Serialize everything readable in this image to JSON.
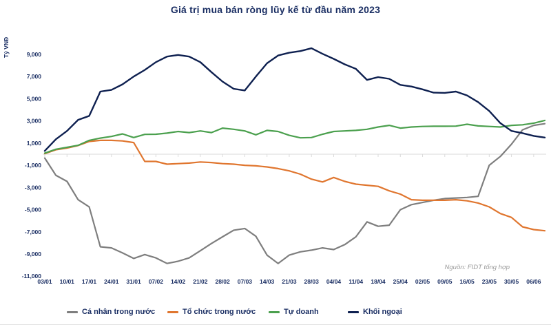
{
  "title": "Giá trị mua bán ròng lũy kế từ đầu năm 2023",
  "source": "Nguồn: FIDT tổng hợp",
  "colors": {
    "text_navy": "#1a2e63",
    "axis_line": "#dadada",
    "source_gray": "#9a9a9a",
    "background": "#ffffff"
  },
  "chart_data": {
    "type": "line",
    "title": "Giá trị mua bán ròng lũy kế từ đầu năm 2023",
    "xlabel": "",
    "ylabel": "Tỷ VNĐ",
    "ylim": [
      -11000,
      9000
    ],
    "y_ticks": [
      9000,
      7000,
      5000,
      3000,
      1000,
      -1000,
      -3000,
      -5000,
      -7000,
      -9000,
      -11000
    ],
    "x_tick_labels": [
      "03/01",
      "10/01",
      "17/01",
      "24/01",
      "31/01",
      "07/02",
      "14/02",
      "21/02",
      "28/02",
      "07/03",
      "14/03",
      "21/03",
      "28/03",
      "04/04",
      "11/04",
      "18/04",
      "25/04",
      "02/05",
      "09/05",
      "16/05",
      "23/05",
      "30/05",
      "06/06"
    ],
    "points_per_week": 2,
    "grid": "zero-axis-only",
    "legend_position": "bottom",
    "series": [
      {
        "key": "ca-nhan-trong-nuoc",
        "name": "Cá nhân trong nước",
        "color": "#7e7e7e",
        "values": [
          -350,
          -1900,
          -2450,
          -4100,
          -4750,
          -8350,
          -8450,
          -8900,
          -9400,
          -9050,
          -9350,
          -9850,
          -9650,
          -9350,
          -8700,
          -8050,
          -7450,
          -6850,
          -6700,
          -7400,
          -9100,
          -9850,
          -9100,
          -8800,
          -8650,
          -8450,
          -8600,
          -8150,
          -7450,
          -6100,
          -6500,
          -6400,
          -5000,
          -4550,
          -4350,
          -4150,
          -4000,
          -3950,
          -3900,
          -3800,
          -1000,
          -200,
          900,
          2200,
          2600,
          2750
        ]
      },
      {
        "key": "to-chuc-trong-nuoc",
        "name": "Tổ chức trong nước",
        "color": "#e0762f",
        "values": [
          50,
          400,
          550,
          780,
          1150,
          1250,
          1250,
          1200,
          1050,
          -650,
          -650,
          -900,
          -850,
          -800,
          -700,
          -750,
          -850,
          -900,
          -1000,
          -1050,
          -1150,
          -1300,
          -1500,
          -1800,
          -2250,
          -2500,
          -2100,
          -2450,
          -2700,
          -2800,
          -2900,
          -3300,
          -3600,
          -4100,
          -4150,
          -4150,
          -4150,
          -4100,
          -4200,
          -4400,
          -4750,
          -5350,
          -5700,
          -6550,
          -6800,
          -6900
        ]
      },
      {
        "key": "tu-doanh",
        "name": "Tự doanh",
        "color": "#4ba04e",
        "values": [
          100,
          450,
          620,
          800,
          1250,
          1450,
          1600,
          1830,
          1500,
          1790,
          1800,
          1900,
          2050,
          1950,
          2100,
          1950,
          2350,
          2250,
          2100,
          1750,
          2150,
          2050,
          1700,
          1480,
          1500,
          1800,
          2050,
          2100,
          2150,
          2250,
          2450,
          2600,
          2350,
          2450,
          2500,
          2520,
          2520,
          2530,
          2700,
          2550,
          2500,
          2450,
          2600,
          2650,
          2800,
          3050
        ]
      },
      {
        "key": "khoi-ngoai",
        "name": "Khối ngoại",
        "color": "#0e2050",
        "values": [
          300,
          1350,
          2100,
          3100,
          3450,
          5650,
          5800,
          6300,
          7000,
          7600,
          8300,
          8800,
          8950,
          8800,
          8300,
          7400,
          6550,
          5900,
          5750,
          7000,
          8200,
          8900,
          9150,
          9300,
          9550,
          9050,
          8600,
          8100,
          7700,
          6700,
          6950,
          6800,
          6250,
          6100,
          5850,
          5550,
          5530,
          5650,
          5300,
          4700,
          3900,
          2800,
          2100,
          1900,
          1650,
          1500
        ]
      }
    ]
  }
}
